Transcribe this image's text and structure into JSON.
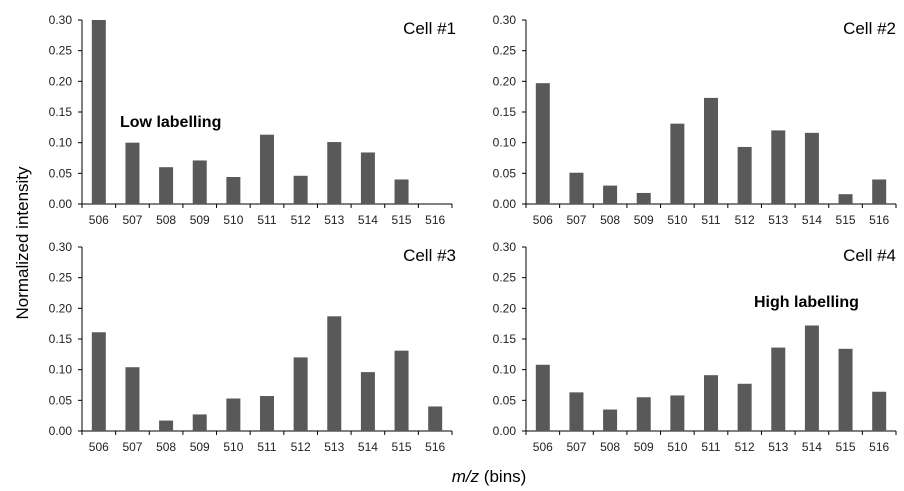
{
  "figure": {
    "ylabel": "Normalized intensity",
    "xlabel_italic": "m/z",
    "xlabel_rest": " (bins)"
  },
  "chart_data": [
    {
      "type": "bar",
      "title": "Cell #1",
      "annotation": "Low labelling",
      "categories": [
        "506",
        "507",
        "508",
        "509",
        "510",
        "511",
        "512",
        "513",
        "514",
        "515",
        "516"
      ],
      "values": [
        0.3,
        0.1,
        0.06,
        0.071,
        0.044,
        0.113,
        0.046,
        0.101,
        0.084,
        0.04,
        0.0
      ],
      "ylim": [
        0,
        0.3
      ],
      "yticks": [
        "0.00",
        "0.05",
        "0.10",
        "0.15",
        "0.20",
        "0.25",
        "0.30"
      ],
      "bar_color": "#595959",
      "grid": false
    },
    {
      "type": "bar",
      "title": "Cell #2",
      "annotation": "",
      "categories": [
        "506",
        "507",
        "508",
        "509",
        "510",
        "511",
        "512",
        "513",
        "514",
        "515",
        "516"
      ],
      "values": [
        0.197,
        0.051,
        0.03,
        0.018,
        0.131,
        0.173,
        0.093,
        0.12,
        0.116,
        0.016,
        0.04
      ],
      "ylim": [
        0,
        0.3
      ],
      "yticks": [
        "0.00",
        "0.05",
        "0.10",
        "0.15",
        "0.20",
        "0.25",
        "0.30"
      ],
      "bar_color": "#595959",
      "grid": false
    },
    {
      "type": "bar",
      "title": "Cell #3",
      "annotation": "",
      "categories": [
        "506",
        "507",
        "508",
        "509",
        "510",
        "511",
        "512",
        "513",
        "514",
        "515",
        "516"
      ],
      "values": [
        0.161,
        0.104,
        0.017,
        0.027,
        0.053,
        0.057,
        0.12,
        0.187,
        0.096,
        0.131,
        0.04
      ],
      "ylim": [
        0,
        0.3
      ],
      "yticks": [
        "0.00",
        "0.05",
        "0.10",
        "0.15",
        "0.20",
        "0.25",
        "0.30"
      ],
      "bar_color": "#595959",
      "grid": false
    },
    {
      "type": "bar",
      "title": "Cell #4",
      "annotation": "High labelling",
      "categories": [
        "506",
        "507",
        "508",
        "509",
        "510",
        "511",
        "512",
        "513",
        "514",
        "515",
        "516"
      ],
      "values": [
        0.108,
        0.063,
        0.035,
        0.055,
        0.058,
        0.091,
        0.077,
        0.136,
        0.172,
        0.134,
        0.064
      ],
      "ylim": [
        0,
        0.3
      ],
      "yticks": [
        "0.00",
        "0.05",
        "0.10",
        "0.15",
        "0.20",
        "0.25",
        "0.30"
      ],
      "bar_color": "#595959",
      "grid": false
    }
  ]
}
